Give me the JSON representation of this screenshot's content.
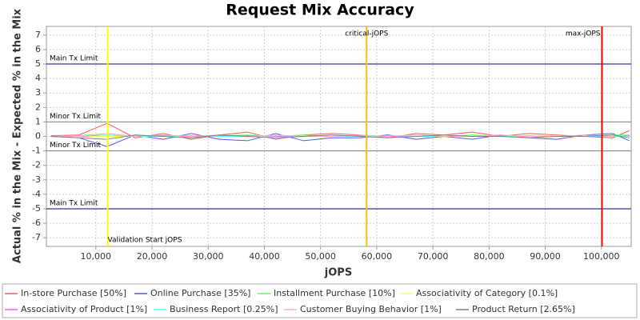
{
  "chart_data": {
    "type": "line",
    "title": "Request Mix Accuracy",
    "x_label": "jOPS",
    "y_label": "Actual % in the Mix - Expected % in the Mix",
    "xlim": [
      1200,
      105300
    ],
    "ylim": [
      -7.6,
      7.6
    ],
    "xticks": [
      {
        "value": 10000,
        "label": "10,000"
      },
      {
        "value": 20000,
        "label": "20,000"
      },
      {
        "value": 30000,
        "label": "30,000"
      },
      {
        "value": 40000,
        "label": "40,000"
      },
      {
        "value": 50000,
        "label": "50,000"
      },
      {
        "value": 60000,
        "label": "60,000"
      },
      {
        "value": 70000,
        "label": "70,000"
      },
      {
        "value": 80000,
        "label": "80,000"
      },
      {
        "value": 90000,
        "label": "90,000"
      },
      {
        "value": 100000,
        "label": "100,000"
      }
    ],
    "yticks": [
      -7,
      -6,
      -5,
      -4,
      -3,
      -2,
      -1,
      0,
      1,
      2,
      3,
      4,
      5,
      6,
      7
    ],
    "grid": true,
    "x": [
      2000,
      7000,
      12000,
      17000,
      22000,
      27000,
      32000,
      37000,
      42000,
      47000,
      52000,
      57000,
      62000,
      67000,
      72000,
      77000,
      82000,
      87000,
      92000,
      97000,
      102000,
      105000
    ],
    "series": [
      {
        "name": "In-store Purchase [50%]",
        "color": "#ff5555",
        "values": [
          0.05,
          0.1,
          0.9,
          -0.1,
          0.2,
          -0.2,
          0.1,
          0.3,
          -0.2,
          0.1,
          0.2,
          0.1,
          -0.1,
          0.2,
          0.1,
          0.3,
          0,
          0.2,
          0.1,
          0,
          -0.1,
          0.4
        ]
      },
      {
        "name": "Online Purchase [35%]",
        "color": "#5555ff",
        "values": [
          0,
          -0.1,
          -0.7,
          0.1,
          -0.2,
          0.2,
          -0.2,
          -0.3,
          0.2,
          -0.3,
          -0.1,
          -0.1,
          0.1,
          -0.2,
          0,
          -0.2,
          0.1,
          -0.1,
          -0.2,
          0.1,
          0.2,
          -0.3
        ]
      },
      {
        "name": "Installment Purchase [10%]",
        "color": "#55ff55",
        "values": [
          0,
          0.05,
          0.2,
          0,
          0.1,
          -0.1,
          0.05,
          0.1,
          0,
          0.1,
          0,
          0.05,
          0,
          0.1,
          0,
          0.1,
          0,
          0.05,
          0,
          0,
          0.1,
          0.1
        ]
      },
      {
        "name": "Associativity of Category [0.1%]",
        "color": "#ffff55",
        "values": [
          0,
          0,
          0,
          0,
          0,
          0,
          0,
          0,
          0,
          0,
          0,
          0,
          0,
          0,
          0,
          0,
          0,
          0,
          0,
          0,
          0,
          0
        ]
      },
      {
        "name": "Associativity of Product [1%]",
        "color": "#ff55ff",
        "values": [
          0,
          0,
          0.1,
          0,
          0.05,
          0,
          0,
          0.05,
          0,
          0,
          0,
          0.05,
          0,
          0,
          0,
          0,
          0.05,
          0,
          0,
          0,
          0,
          0.05
        ]
      },
      {
        "name": "Business Report [0.25%]",
        "color": "#55ffff",
        "values": [
          0,
          0.05,
          0.1,
          0,
          0,
          0.05,
          0,
          0,
          0.05,
          0,
          0,
          0,
          0.05,
          0,
          0,
          0,
          0,
          0.05,
          0,
          0,
          0,
          0
        ]
      },
      {
        "name": "Customer Buying Behavior [1%]",
        "color": "#ffafaf",
        "values": [
          0,
          0,
          0.2,
          0,
          0.1,
          0,
          0.1,
          0,
          0.1,
          0,
          0,
          0.1,
          0,
          0.1,
          0,
          0,
          0.1,
          0,
          0,
          0.1,
          0,
          0.1
        ]
      },
      {
        "name": "Product Return [2.65%]",
        "color": "#808080",
        "values": [
          0,
          -0.1,
          -0.2,
          0.1,
          0,
          -0.1,
          0.1,
          0,
          -0.1,
          0,
          0.1,
          0,
          -0.1,
          0,
          0.1,
          0,
          0,
          -0.1,
          0,
          0,
          0.1,
          -0.1
        ]
      }
    ],
    "hlines": [
      {
        "value": 5,
        "label": "Main Tx Limit",
        "color": "#000080"
      },
      {
        "value": 1,
        "label": "Minor Tx Limit",
        "color": "#808080"
      },
      {
        "value": -1,
        "label": "Minor Tx Limit",
        "color": "#808080"
      },
      {
        "value": -5,
        "label": "Main Tx Limit",
        "color": "#000080"
      }
    ],
    "vlines": [
      {
        "value": 12100,
        "label": "Validation Start jOPS",
        "color": "#ffff00"
      },
      {
        "value": 58200,
        "label": "critical-jOPS",
        "color": "#ffc000"
      },
      {
        "value": 100100,
        "label": "max-jOPS",
        "color": "#ff0000"
      }
    ]
  }
}
